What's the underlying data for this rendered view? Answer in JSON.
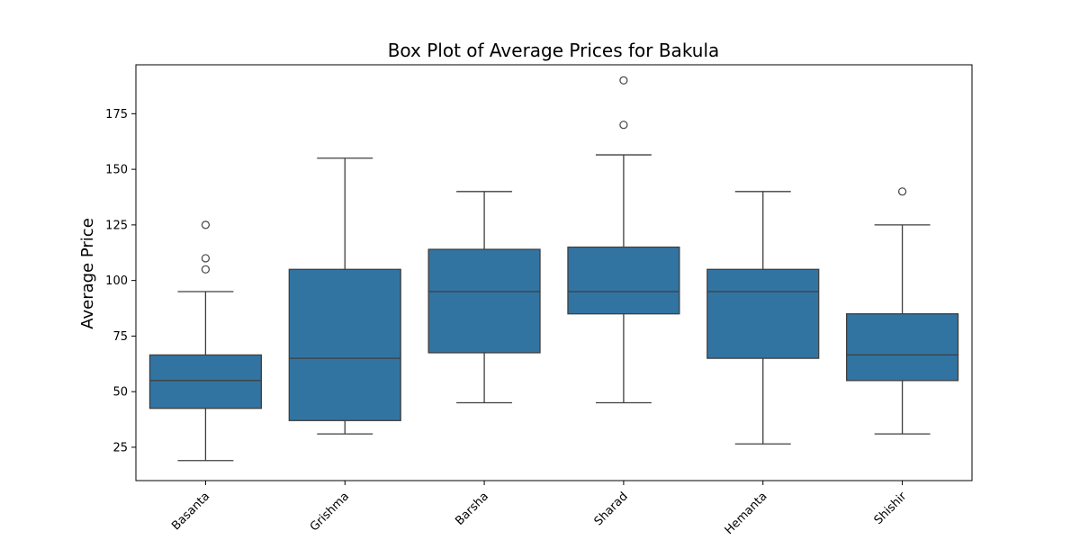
{
  "chart_data": {
    "type": "box",
    "title": "Box Plot of Average Prices for Bakula",
    "xlabel": "",
    "ylabel": "Average Price",
    "ylim": [
      10,
      197
    ],
    "yticks": [
      25,
      50,
      75,
      100,
      125,
      150,
      175
    ],
    "box_color": "#3274a1",
    "line_color": "#3f3f3f",
    "grid": false,
    "legend": "none",
    "categories": [
      "Basanta",
      "Grishma",
      "Barsha",
      "Sharad",
      "Hemanta",
      "Shishir"
    ],
    "boxes": [
      {
        "whisker_low": 19,
        "q1": 42.5,
        "median": 55,
        "q3": 66.5,
        "whisker_high": 95,
        "outliers": [
          105,
          110,
          125
        ]
      },
      {
        "whisker_low": 31,
        "q1": 37,
        "median": 65,
        "q3": 105,
        "whisker_high": 155,
        "outliers": []
      },
      {
        "whisker_low": 45,
        "q1": 67.5,
        "median": 95,
        "q3": 114,
        "whisker_high": 140,
        "outliers": []
      },
      {
        "whisker_low": 45,
        "q1": 85,
        "median": 95,
        "q3": 115,
        "whisker_high": 156.5,
        "outliers": [
          170,
          190
        ]
      },
      {
        "whisker_low": 26.5,
        "q1": 65,
        "median": 95,
        "q3": 105,
        "whisker_high": 140,
        "outliers": []
      },
      {
        "whisker_low": 31,
        "q1": 55,
        "median": 66.5,
        "q3": 85,
        "whisker_high": 125,
        "outliers": [
          140
        ]
      }
    ]
  }
}
